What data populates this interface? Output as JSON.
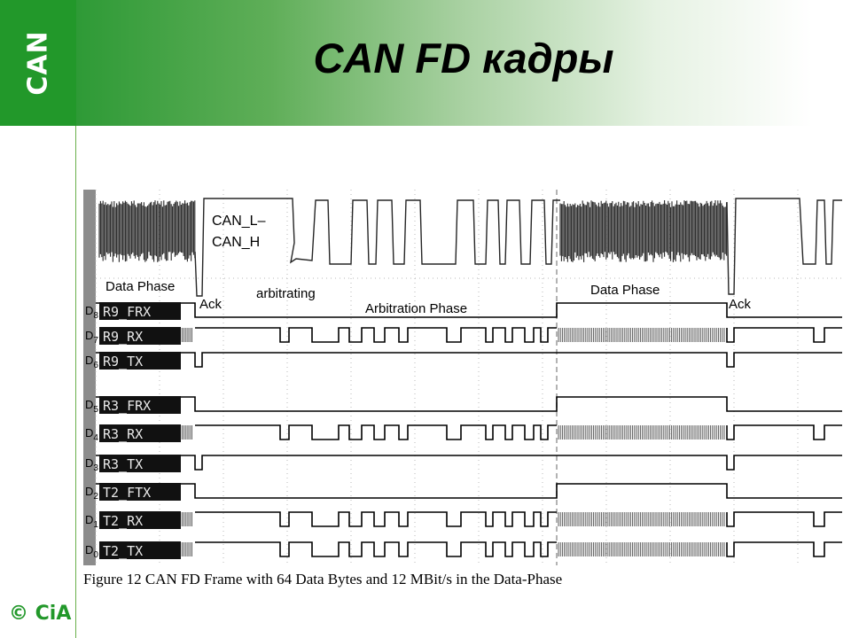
{
  "header": {
    "logo_text": "CAN",
    "title": "CAN FD кадры",
    "copyright": "© CiA",
    "logo_color": "#22982a"
  },
  "figure": {
    "analog_label_1": "CAN_L–",
    "analog_label_2": "CAN_H",
    "annotations": {
      "data_phase_left": "Data Phase",
      "ack_left": "Ack",
      "arbitrating": "arbitrating",
      "arbitration_phase": "Arbitration Phase",
      "data_phase_right": "Data Phase",
      "ack_right": "Ack"
    },
    "channels": [
      {
        "index": "D8",
        "prefix": "D",
        "sub": "8",
        "name": "R9_FRX"
      },
      {
        "index": "D7",
        "prefix": "D",
        "sub": "7",
        "name": "R9_RX"
      },
      {
        "index": "D6",
        "prefix": "D",
        "sub": "6",
        "name": "R9_TX"
      },
      {
        "index": "D5",
        "prefix": "D",
        "sub": "5",
        "name": "R3_FRX"
      },
      {
        "index": "D4",
        "prefix": "D",
        "sub": "4",
        "name": "R3_RX"
      },
      {
        "index": "D3",
        "prefix": "D",
        "sub": "3",
        "name": "R3_TX"
      },
      {
        "index": "D2",
        "prefix": "D",
        "sub": "2",
        "name": "T2_FTX"
      },
      {
        "index": "D1",
        "prefix": "D",
        "sub": "1",
        "name": "T2_RX"
      },
      {
        "index": "D0",
        "prefix": "D",
        "sub": "0",
        "name": "T2_TX"
      }
    ],
    "caption": "Figure 12  CAN FD Frame with 64 Data Bytes and 12 MBit/s in the Data-Phase"
  }
}
